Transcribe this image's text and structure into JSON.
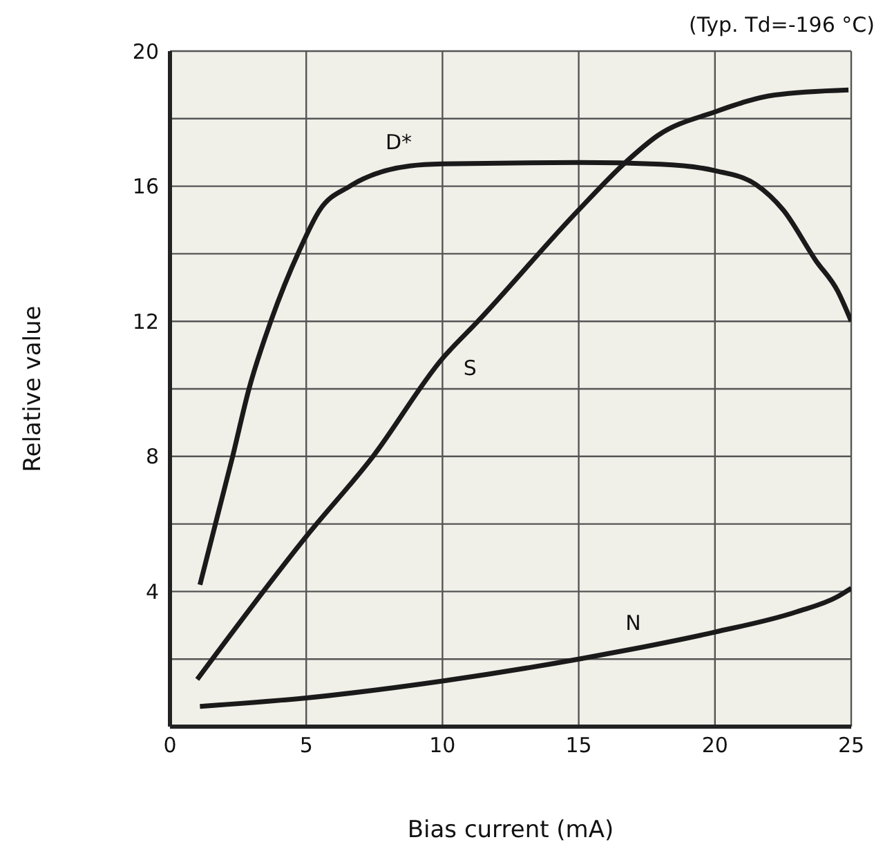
{
  "chart_data": {
    "type": "line",
    "xlabel": "Bias current (mA)",
    "ylabel": "Relative value",
    "annotations": [
      "(Typ. Td=-196 °C)"
    ],
    "series": [
      {
        "name": "D*",
        "color": "#1a1a1a",
        "x": [
          1.1,
          2.3,
          2.9,
          3.7,
          4.75,
          5.5,
          6.6,
          8.8,
          10,
          15,
          18,
          20,
          21.5,
          22.5,
          23.7,
          24.5,
          25
        ],
        "values": [
          4.2,
          8,
          10,
          12,
          14.1,
          15.3,
          16,
          16.6,
          16.66,
          16.7,
          16.65,
          16.46,
          16.05,
          15.3,
          13.8,
          12.9,
          12
        ]
      },
      {
        "name": "S",
        "color": "#1a1a1a",
        "x": [
          1,
          5,
          7.45,
          10,
          11.3,
          15,
          16.75,
          17.9,
          20,
          22.2,
          24.9
        ],
        "values": [
          1.4,
          5.63,
          8,
          10.9,
          12,
          15.3,
          16.73,
          17.5,
          18.2,
          18.7,
          18.85
        ]
      },
      {
        "name": "N",
        "color": "#1a1a1a",
        "x": [
          1.1,
          5,
          10,
          15,
          17,
          20,
          23,
          24.5,
          25
        ],
        "values": [
          0.6,
          0.85,
          1.35,
          2,
          2.3,
          2.8,
          3.4,
          3.85,
          4.1
        ]
      }
    ],
    "xlim": [
      0,
      25
    ],
    "xticks": [
      0,
      5,
      10,
      15,
      20,
      25
    ],
    "ylim": [
      0,
      20
    ],
    "yticks": [
      {
        "value": 2,
        "label": null
      },
      4,
      {
        "value": 6,
        "label": null
      },
      8,
      {
        "value": 10,
        "label": null
      },
      12,
      {
        "value": 14,
        "label": null
      },
      16,
      {
        "value": 18,
        "label": null
      },
      20
    ],
    "grid": true
  }
}
